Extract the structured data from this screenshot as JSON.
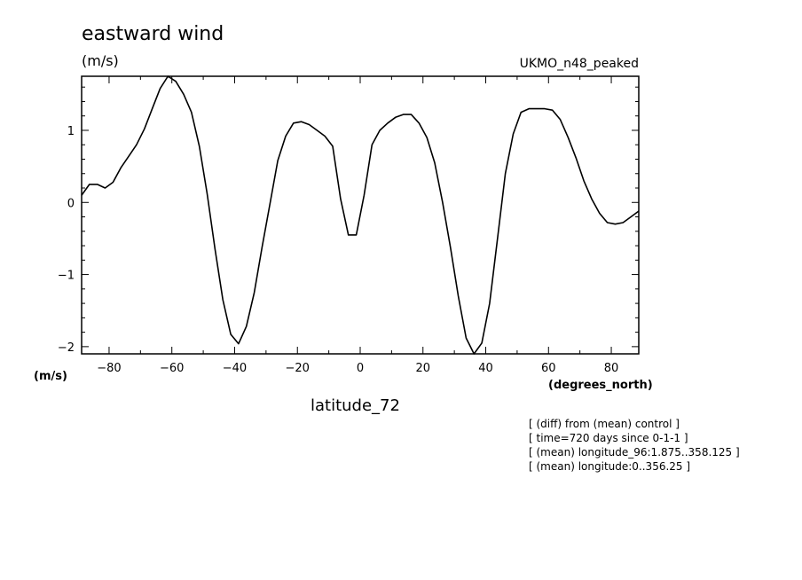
{
  "chart_data": {
    "type": "line",
    "title": "eastward wind",
    "units": "(m/s)",
    "model_label": "UKMO_n48_peaked",
    "ylabel_bottom": "(m/s)",
    "xunits": "(degrees_north)",
    "xlabel": "latitude_72",
    "notes": [
      "[ (diff) from (mean) control ]",
      "[ time=720 days since 0-1-1 ]",
      "[ (mean) longitude_96:1.875..358.125 ]",
      "[ (mean) longitude:0..356.25 ]"
    ],
    "xlim": [
      -88.75,
      88.75
    ],
    "ylim": [
      -2.1,
      1.75
    ],
    "xticks": [
      -80,
      -60,
      -40,
      -20,
      0,
      20,
      40,
      60,
      80
    ],
    "xtick_labels": [
      "-80",
      "-60",
      "-40",
      "-20",
      "0",
      "20",
      "40",
      "60",
      "80"
    ],
    "yticks": [
      -2,
      -1,
      0,
      1
    ],
    "ytick_labels": [
      "-2",
      "-1",
      "0",
      "1"
    ],
    "grid": false,
    "series": [
      {
        "x": [
          -88.75,
          -86.25,
          -83.75,
          -81.25,
          -78.75,
          -76.25,
          -73.75,
          -71.25,
          -68.75,
          -66.25,
          -63.75,
          -61.25,
          -58.75,
          -56.25,
          -53.75,
          -51.25,
          -48.75,
          -46.25,
          -43.75,
          -41.25,
          -38.75,
          -36.25,
          -33.75,
          -31.25,
          -28.75,
          -26.25,
          -23.75,
          -21.25,
          -18.75,
          -16.25,
          -13.75,
          -11.25,
          -8.75,
          -6.25,
          -3.75,
          -1.25,
          1.25,
          3.75,
          6.25,
          8.75,
          11.25,
          13.75,
          16.25,
          18.75,
          21.25,
          23.75,
          26.25,
          28.75,
          31.25,
          33.75,
          36.25,
          38.75,
          41.25,
          43.75,
          46.25,
          48.75,
          51.25,
          53.75,
          56.25,
          58.75,
          61.25,
          63.75,
          66.25,
          68.75,
          71.25,
          73.75,
          76.25,
          78.75,
          81.25,
          83.75,
          86.25,
          88.75
        ],
        "values": [
          0.1,
          0.25,
          0.25,
          0.2,
          0.28,
          0.48,
          0.64,
          0.8,
          1.02,
          1.3,
          1.58,
          1.75,
          1.68,
          1.5,
          1.25,
          0.78,
          0.12,
          -0.65,
          -1.35,
          -1.83,
          -1.96,
          -1.72,
          -1.25,
          -0.62,
          -0.02,
          0.58,
          0.92,
          1.1,
          1.12,
          1.08,
          1.0,
          0.92,
          0.78,
          0.05,
          -0.45,
          -0.45,
          0.1,
          0.8,
          1.0,
          1.1,
          1.18,
          1.22,
          1.22,
          1.1,
          0.9,
          0.55,
          0.0,
          -0.62,
          -1.3,
          -1.88,
          -2.1,
          -1.95,
          -1.4,
          -0.5,
          0.4,
          0.95,
          1.25,
          1.3,
          1.3,
          1.3,
          1.28,
          1.15,
          0.9,
          0.62,
          0.3,
          0.05,
          -0.15,
          -0.28,
          -0.3,
          -0.28,
          -0.2,
          -0.12
        ]
      }
    ]
  }
}
